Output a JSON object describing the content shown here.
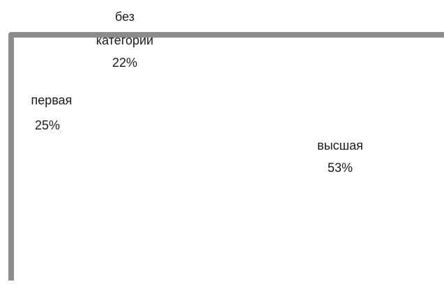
{
  "chart_data": {
    "type": "pie",
    "title": "",
    "categories": [
      "высшая",
      "первая",
      "без категории"
    ],
    "values": [
      53,
      25,
      22
    ],
    "unit": "%",
    "labels": [
      {
        "category_lines": [
          "высшая"
        ],
        "value_text": "53%"
      },
      {
        "category_lines": [
          "первая"
        ],
        "value_text": "25%"
      },
      {
        "category_lines": [
          "без",
          "категории"
        ],
        "value_text": "22%"
      }
    ],
    "colors": {
      "frame": "#8c8c8c",
      "background": "#ffffff",
      "text": "#1a1a1a"
    },
    "legend": "none",
    "grid": false
  }
}
